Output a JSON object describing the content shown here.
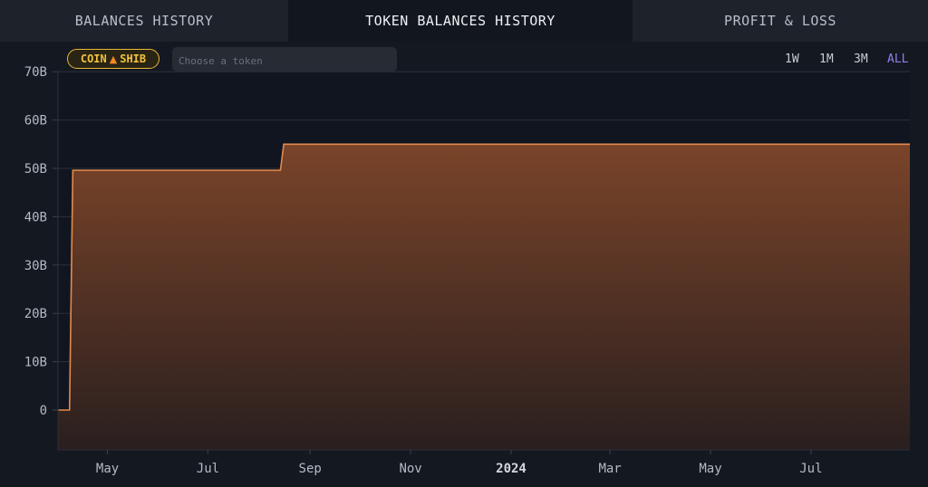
{
  "tabs": [
    {
      "label": "BALANCES HISTORY"
    },
    {
      "label": "TOKEN BALANCES HISTORY"
    },
    {
      "label": "PROFIT & LOSS"
    }
  ],
  "filter": {
    "chip_prefix": "COIN",
    "chip_icon": "fox-icon",
    "chip_token": "SHIB",
    "token_placeholder": "Choose a token"
  },
  "ranges": [
    {
      "label": "1W"
    },
    {
      "label": "1M"
    },
    {
      "label": "3M"
    },
    {
      "label": "ALL"
    }
  ],
  "colors": {
    "accent": "#8f7ff0",
    "line": "#e38a4c",
    "chip": "#e7b93a"
  },
  "chart_data": {
    "type": "area",
    "y_unit": "B",
    "ylim": [
      -8,
      70
    ],
    "yticks": [
      {
        "value": 0,
        "label": "0"
      },
      {
        "value": 10,
        "label": "10B"
      },
      {
        "value": 20,
        "label": "20B"
      },
      {
        "value": 30,
        "label": "30B"
      },
      {
        "value": 40,
        "label": "40B"
      },
      {
        "value": 50,
        "label": "50B"
      },
      {
        "value": 60,
        "label": "60B"
      },
      {
        "value": 70,
        "label": "70B"
      }
    ],
    "xlim": [
      "2023-04-01",
      "2024-08-30"
    ],
    "xticks": [
      {
        "date": "2023-05-01",
        "label": "May",
        "bold": false
      },
      {
        "date": "2023-07-01",
        "label": "Jul",
        "bold": false
      },
      {
        "date": "2023-09-01",
        "label": "Sep",
        "bold": false
      },
      {
        "date": "2023-11-01",
        "label": "Nov",
        "bold": false
      },
      {
        "date": "2024-01-01",
        "label": "2024",
        "bold": true
      },
      {
        "date": "2024-03-01",
        "label": "Mar",
        "bold": false
      },
      {
        "date": "2024-05-01",
        "label": "May",
        "bold": false
      },
      {
        "date": "2024-07-01",
        "label": "Jul",
        "bold": false
      }
    ],
    "grid": true,
    "series": [
      {
        "points": [
          {
            "x": "2023-04-01",
            "y": 0
          },
          {
            "x": "2023-04-08",
            "y": 0
          },
          {
            "x": "2023-04-10",
            "y": 49.6
          },
          {
            "x": "2023-08-14",
            "y": 49.6
          },
          {
            "x": "2023-08-16",
            "y": 55.0
          },
          {
            "x": "2024-08-30",
            "y": 55.0
          }
        ]
      }
    ]
  }
}
